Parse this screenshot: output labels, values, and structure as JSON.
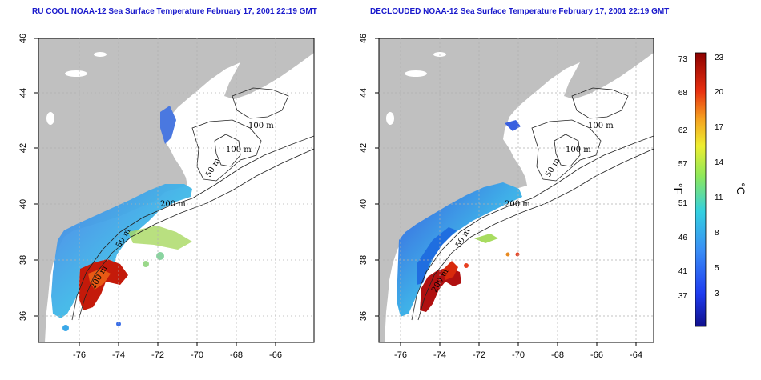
{
  "titles": {
    "left": "RU COOL NOAA-12 Sea Surface Temperature February 17, 2001 22:19 GMT",
    "right": "DECLOUDED NOAA-12 Sea Surface Temperature February 17, 2001 22:19 GMT"
  },
  "axes": {
    "x_ticks": [
      "-76",
      "-74",
      "-72",
      "-70",
      "-68",
      "-66",
      "-64"
    ],
    "y_ticks": [
      "36",
      "38",
      "40",
      "42",
      "44",
      "46"
    ]
  },
  "contour_labels": {
    "m100_a": "100 m",
    "m100_b": "100 m",
    "m50": "50 m",
    "m200": "200 m",
    "m50_shelf": "50 m",
    "m200_south": "200 m"
  },
  "colorbar": {
    "fahrenheit_ticks": [
      "73",
      "68",
      "62",
      "57",
      "51",
      "46",
      "41",
      "37"
    ],
    "celsius_ticks": [
      "23",
      "20",
      "17",
      "14",
      "11",
      "8",
      "5",
      "3"
    ],
    "fahrenheit_unit": "°F",
    "celsius_unit": "°C"
  },
  "colors": {
    "land": "#c0c0c0",
    "title": "#1a1acc",
    "cold": "#1a1aa0",
    "hot": "#b00000"
  }
}
